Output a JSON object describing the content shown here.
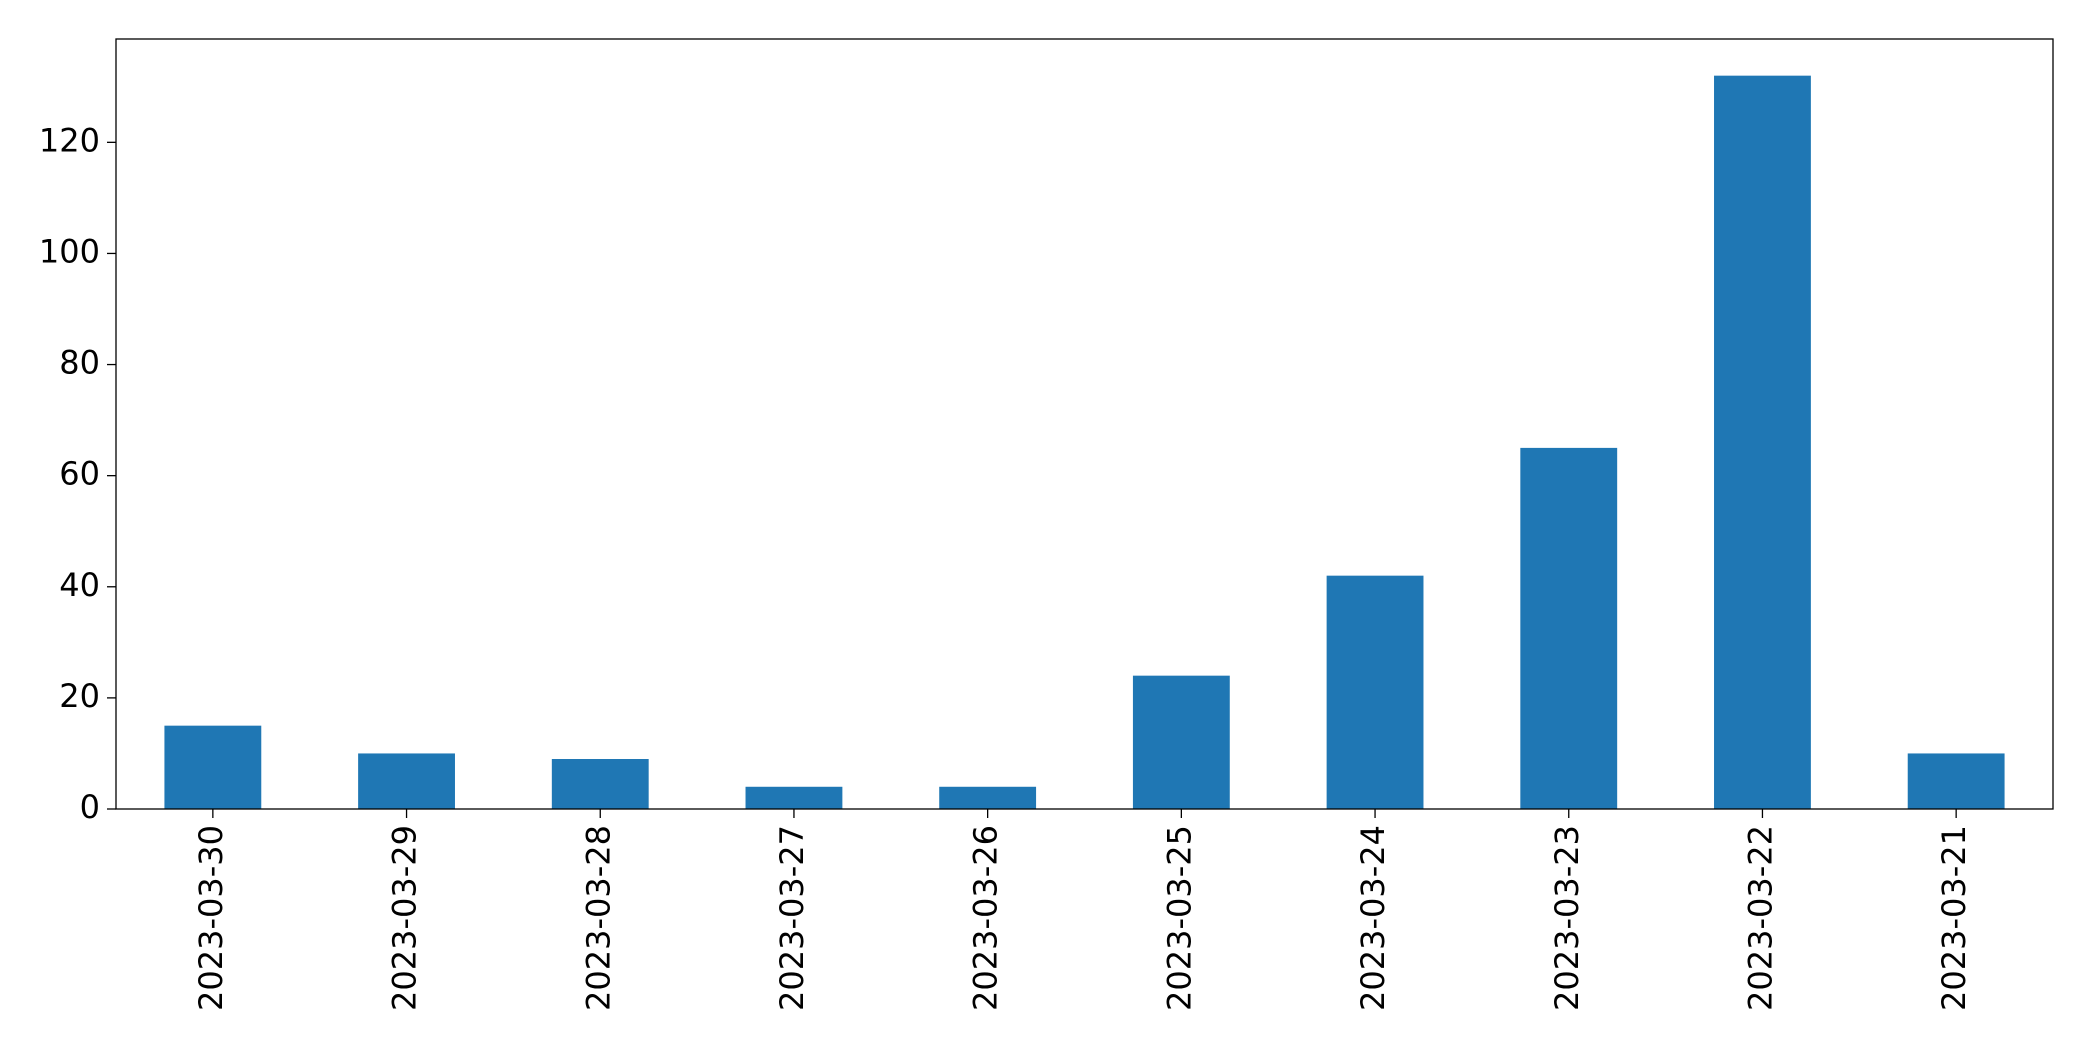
{
  "chart_data": {
    "type": "bar",
    "categories": [
      "2023-03-30",
      "2023-03-29",
      "2023-03-28",
      "2023-03-27",
      "2023-03-26",
      "2023-03-25",
      "2023-03-24",
      "2023-03-23",
      "2023-03-22",
      "2023-03-21"
    ],
    "values": [
      15,
      10,
      9,
      4,
      4,
      24,
      42,
      65,
      132,
      10
    ],
    "color": "#1f77b4",
    "ylim": [
      0,
      138.6
    ],
    "yticks": [
      0,
      20,
      40,
      60,
      80,
      100,
      120
    ],
    "grid": false
  }
}
